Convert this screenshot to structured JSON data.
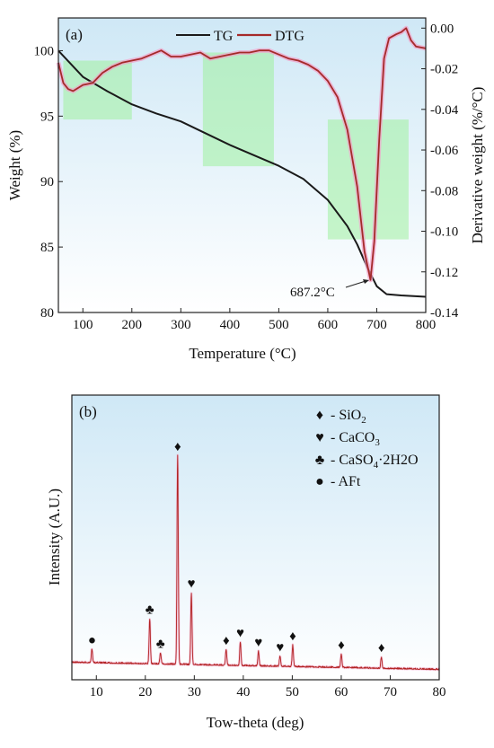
{
  "chart_data": [
    {
      "panel": "(a)",
      "type": "line",
      "title": "",
      "xlabel": "Temperature (°C)",
      "ylabel": "Weight (%)",
      "y2label": "Derivative weight (%/°C)",
      "xlim": [
        50,
        800
      ],
      "ylim": [
        80,
        102.5
      ],
      "y2lim": [
        -0.14,
        0.005
      ],
      "x_ticks": [
        100,
        200,
        300,
        400,
        500,
        600,
        700,
        800
      ],
      "y_ticks": [
        80,
        85,
        90,
        95,
        100
      ],
      "y2_ticks": [
        0.0,
        -0.02,
        -0.04,
        -0.06,
        -0.08,
        -0.1,
        -0.12,
        -0.14
      ],
      "y2_tick_labels": [
        "0.00",
        "-0.02",
        "-0.04",
        "-0.06",
        "-0.08",
        "-0.10",
        "-0.12",
        "-0.14"
      ],
      "legend_position": "top-center",
      "series": [
        {
          "name": "TG",
          "axis": "left",
          "color": "#1a1a1a",
          "x": [
            50,
            100,
            150,
            200,
            250,
            300,
            350,
            400,
            450,
            500,
            550,
            600,
            640,
            660,
            680,
            700,
            720,
            750,
            800
          ],
          "y": [
            100.0,
            98.0,
            96.9,
            95.9,
            95.2,
            94.6,
            93.7,
            92.8,
            92.0,
            91.2,
            90.2,
            88.6,
            86.6,
            85.2,
            83.5,
            82.0,
            81.4,
            81.3,
            81.2
          ]
        },
        {
          "name": "DTG",
          "axis": "right",
          "color": "#a52a2a",
          "x": [
            50,
            60,
            70,
            80,
            100,
            120,
            140,
            160,
            180,
            200,
            220,
            240,
            260,
            280,
            300,
            320,
            340,
            360,
            380,
            400,
            420,
            440,
            460,
            480,
            500,
            520,
            540,
            560,
            580,
            600,
            620,
            640,
            660,
            675,
            687.2,
            695,
            705,
            715,
            725,
            740,
            750,
            760,
            770,
            780,
            800
          ],
          "y": [
            -0.017,
            -0.027,
            -0.03,
            -0.031,
            -0.028,
            -0.027,
            -0.022,
            -0.019,
            -0.017,
            -0.016,
            -0.015,
            -0.013,
            -0.011,
            -0.014,
            -0.014,
            -0.013,
            -0.012,
            -0.015,
            -0.014,
            -0.013,
            -0.012,
            -0.012,
            -0.011,
            -0.011,
            -0.013,
            -0.015,
            -0.016,
            -0.018,
            -0.021,
            -0.026,
            -0.034,
            -0.05,
            -0.078,
            -0.11,
            -0.124,
            -0.105,
            -0.055,
            -0.015,
            -0.005,
            -0.003,
            -0.002,
            0.0,
            -0.006,
            -0.009,
            -0.01
          ]
        }
      ],
      "highlight_regions": [
        {
          "x": [
            60,
            200
          ],
          "y2": [
            -0.045,
            -0.016
          ]
        },
        {
          "x": [
            345,
            490
          ],
          "y2": [
            -0.068,
            -0.012
          ]
        },
        {
          "x": [
            600,
            765
          ],
          "y2": [
            -0.104,
            -0.045
          ]
        }
      ],
      "annotations": [
        {
          "text": "687.2°C",
          "x": 687.2,
          "y2": -0.124
        }
      ]
    },
    {
      "panel": "(b)",
      "type": "line",
      "title": "",
      "xlabel": "Tow-theta (deg)",
      "ylabel": "Intensity (A.U.)",
      "xlim": [
        5,
        80
      ],
      "ylim": [
        0,
        100
      ],
      "x_ticks": [
        10,
        20,
        30,
        40,
        50,
        60,
        70,
        80
      ],
      "legend_position": "top-right",
      "legend": [
        {
          "symbol": "♦",
          "name": "- SiO",
          "sub": "2",
          "tail": ""
        },
        {
          "symbol": "♥",
          "name": "- CaCO",
          "sub": "3",
          "tail": ""
        },
        {
          "symbol": "♣",
          "name": "- CaSO",
          "sub": "4",
          "tail": "·2H2O"
        },
        {
          "symbol": "●",
          "name": "- AFt",
          "sub": "",
          "tail": ""
        }
      ],
      "peaks": [
        {
          "x": 9.1,
          "y": 6.0,
          "phase": "AFt",
          "symbol": "●"
        },
        {
          "x": 20.9,
          "y": 20.0,
          "phase": "CaSO4·2H2O",
          "symbol": "♣"
        },
        {
          "x": 23.1,
          "y": 5.0,
          "phase": "CaSO4·2H2O",
          "symbol": "♣"
        },
        {
          "x": 26.6,
          "y": 93.0,
          "phase": "SiO2",
          "symbol": "♦"
        },
        {
          "x": 29.4,
          "y": 32.0,
          "phase": "CaCO3",
          "symbol": "♥"
        },
        {
          "x": 36.5,
          "y": 7.0,
          "phase": "SiO2",
          "symbol": "♦"
        },
        {
          "x": 39.4,
          "y": 10.5,
          "phase": "CaCO3",
          "symbol": "♥"
        },
        {
          "x": 43.1,
          "y": 6.5,
          "phase": "CaCO3",
          "symbol": "♥"
        },
        {
          "x": 47.5,
          "y": 4.5,
          "phase": "CaCO3",
          "symbol": "♥"
        },
        {
          "x": 50.1,
          "y": 9.5,
          "phase": "SiO2",
          "symbol": "♦"
        },
        {
          "x": 60.0,
          "y": 6.0,
          "phase": "SiO2",
          "symbol": "♦"
        },
        {
          "x": 68.2,
          "y": 5.0,
          "phase": "SiO2",
          "symbol": "♦"
        }
      ]
    }
  ],
  "colors": {
    "tg_line": "#1a1a1a",
    "dtg_line": "#a52a2a",
    "xrd_line": "#b22222",
    "highlight": "#9ef09e",
    "panel_bg_top": "#cfe8f6",
    "panel_bg_bottom": "#ffffff"
  }
}
